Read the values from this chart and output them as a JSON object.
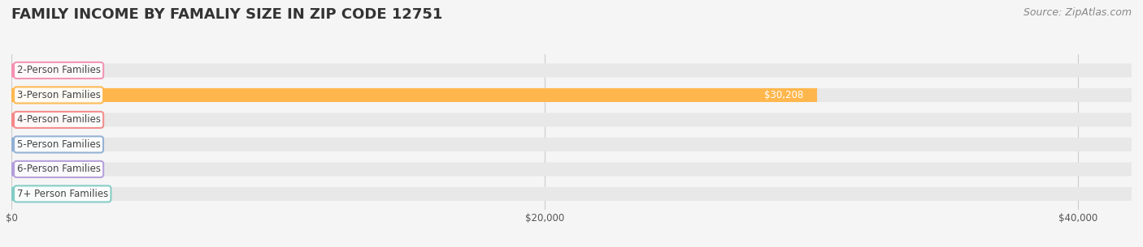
{
  "title": "FAMILY INCOME BY FAMALIY SIZE IN ZIP CODE 12751",
  "source": "Source: ZipAtlas.com",
  "categories": [
    "2-Person Families",
    "3-Person Families",
    "4-Person Families",
    "5-Person Families",
    "6-Person Families",
    "7+ Person Families"
  ],
  "values": [
    0,
    30208,
    0,
    0,
    0,
    0
  ],
  "bar_colors": [
    "#f48fb1",
    "#ffb74d",
    "#f48888",
    "#90afd4",
    "#b39ddb",
    "#80cbc4"
  ],
  "label_colors": [
    "#f48fb1",
    "#ffb74d",
    "#f48888",
    "#90afd4",
    "#b39ddb",
    "#80cbc4"
  ],
  "xlim": [
    0,
    42000
  ],
  "xticks": [
    0,
    20000,
    40000
  ],
  "xtick_labels": [
    "$0",
    "$20,000",
    "$40,000"
  ],
  "background_color": "#f5f5f5",
  "bar_background_color": "#e8e8e8",
  "title_fontsize": 13,
  "source_fontsize": 9,
  "label_fontsize": 8.5,
  "value_label_color": "#ffffff",
  "zero_value_label_color": "#555555",
  "bar_height": 0.55,
  "figsize": [
    14.06,
    3.05
  ],
  "dpi": 100
}
